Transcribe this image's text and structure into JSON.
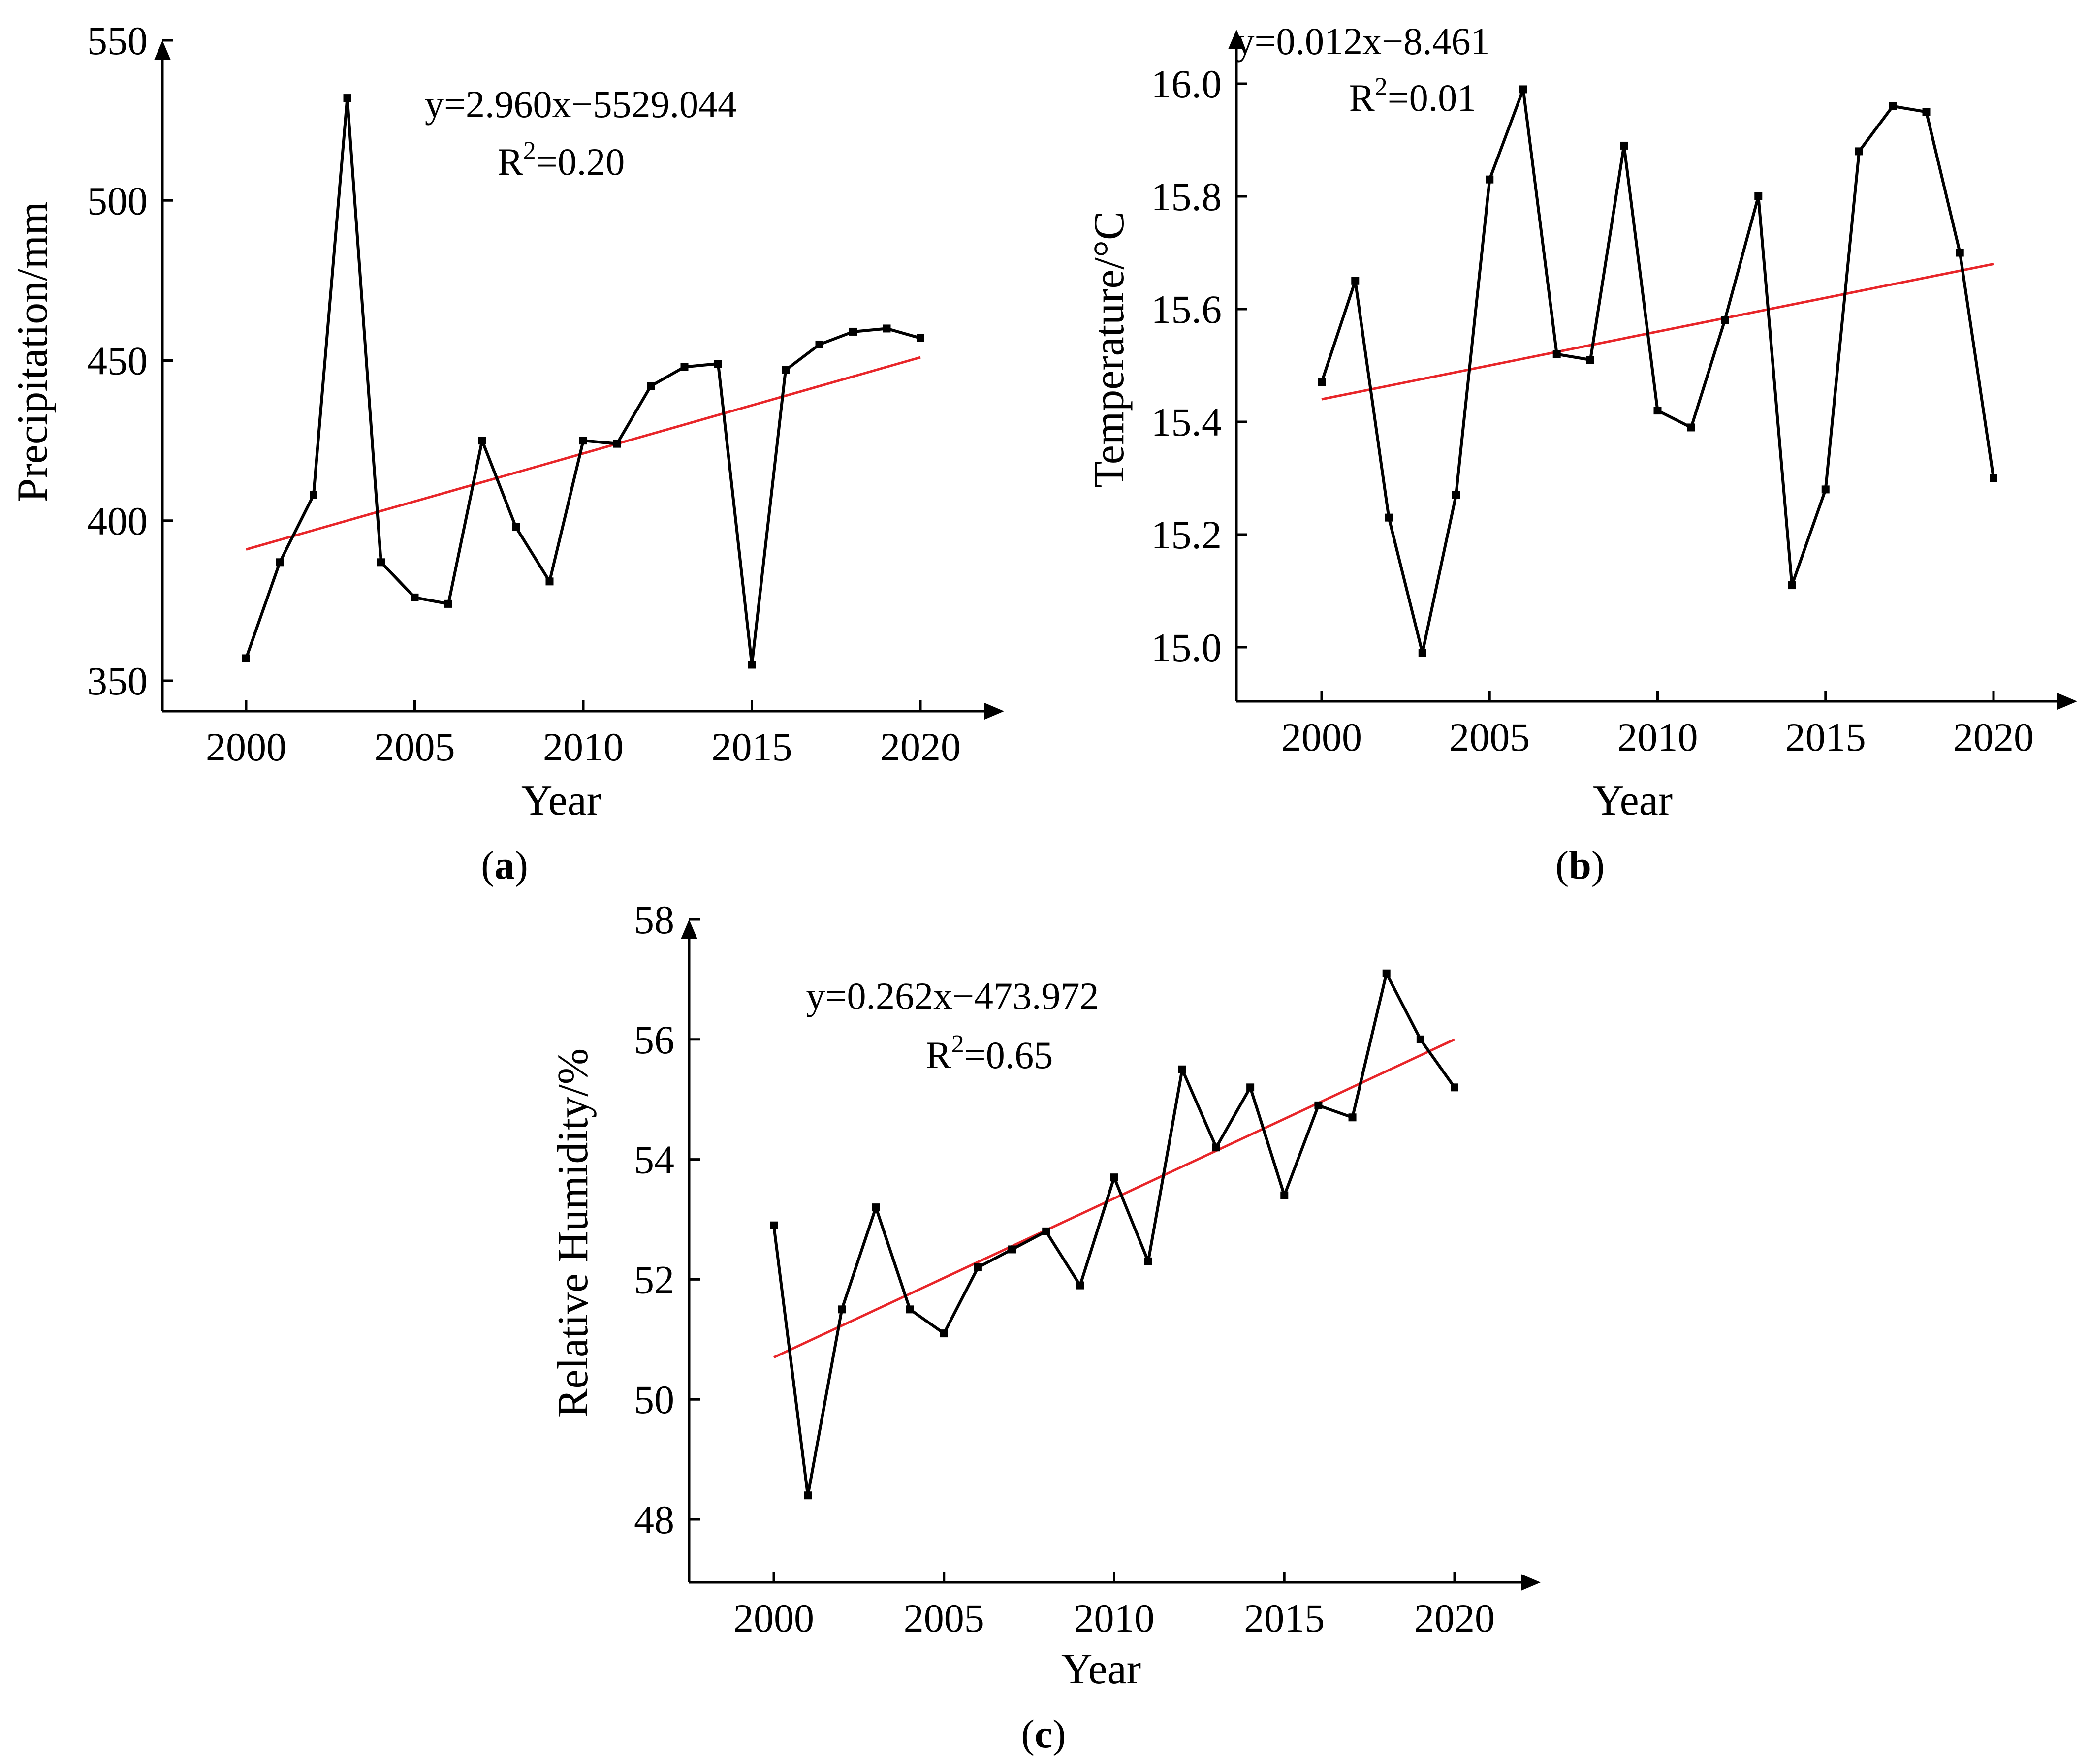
{
  "chart_data": [
    {
      "id": "a",
      "type": "line",
      "panel_label": "a",
      "xlabel": "Year",
      "ylabel": "Precipitation/mm",
      "xlim": [
        1997.5,
        2022.5
      ],
      "ylim": [
        345,
        550
      ],
      "xticks": [
        2000,
        2005,
        2010,
        2015,
        2020
      ],
      "yticks": [
        350,
        400,
        450,
        500,
        550
      ],
      "x": [
        2000,
        2001,
        2002,
        2003,
        2004,
        2005,
        2006,
        2007,
        2008,
        2009,
        2010,
        2011,
        2012,
        2013,
        2014,
        2015,
        2016,
        2017,
        2018,
        2019,
        2020
      ],
      "values": [
        357,
        387,
        408,
        532,
        387,
        376,
        374,
        425,
        398,
        381,
        425,
        424,
        442,
        448,
        449,
        355,
        447,
        455,
        459,
        460,
        457
      ],
      "trend": {
        "equation": "y=2.960x−5529.044",
        "r2_base": "R",
        "r2_sup": "2",
        "r2_rest": "=0.20",
        "x": [
          2000,
          2020
        ],
        "y": [
          391,
          451
        ]
      }
    },
    {
      "id": "b",
      "type": "line",
      "panel_label": "b",
      "xlabel": "Year",
      "ylabel": "Temperature/°C",
      "xlim": [
        1997.5,
        2022.5
      ],
      "ylim": [
        14.9,
        16.1
      ],
      "xticks": [
        2000,
        2005,
        2010,
        2015,
        2020
      ],
      "yticks": [
        15.0,
        15.2,
        15.4,
        15.6,
        15.8,
        16.0
      ],
      "ytick_labels": [
        "15.0",
        "15.2",
        "15.4",
        "15.6",
        "15.8",
        "16.0"
      ],
      "x": [
        2000,
        2001,
        2002,
        2003,
        2004,
        2005,
        2006,
        2007,
        2008,
        2009,
        2010,
        2011,
        2012,
        2013,
        2014,
        2015,
        2016,
        2017,
        2018,
        2019,
        2020
      ],
      "values": [
        15.47,
        15.65,
        15.23,
        14.99,
        15.27,
        15.83,
        15.99,
        15.52,
        15.51,
        15.89,
        15.42,
        15.39,
        15.58,
        15.8,
        15.11,
        15.28,
        15.88,
        15.96,
        15.95,
        15.7,
        15.3
      ],
      "trend": {
        "equation": "y=0.012x−8.461",
        "r2_base": "R",
        "r2_sup": "2",
        "r2_rest": "=0.01",
        "x": [
          2000,
          2020
        ],
        "y": [
          15.44,
          15.68
        ]
      }
    },
    {
      "id": "c",
      "type": "line",
      "panel_label": "c",
      "xlabel": "Year",
      "ylabel": "Relative Humidity/%",
      "xlim": [
        1997.5,
        2022.5
      ],
      "ylim": [
        47.0,
        58.0
      ],
      "xticks": [
        2000,
        2005,
        2010,
        2015,
        2020
      ],
      "yticks": [
        48,
        50,
        52,
        54,
        56,
        58
      ],
      "x": [
        2000,
        2001,
        2002,
        2003,
        2004,
        2005,
        2006,
        2007,
        2008,
        2009,
        2010,
        2011,
        2012,
        2013,
        2014,
        2015,
        2016,
        2017,
        2018,
        2019,
        2020
      ],
      "values": [
        52.9,
        48.4,
        51.5,
        53.2,
        51.5,
        51.1,
        52.2,
        52.5,
        52.8,
        51.9,
        53.7,
        52.3,
        55.5,
        54.2,
        55.2,
        53.4,
        54.9,
        54.7,
        57.1,
        56.0,
        55.2
      ],
      "trend": {
        "equation": "y=0.262x−473.972",
        "r2_base": "R",
        "r2_sup": "2",
        "r2_rest": "=0.65",
        "x": [
          2000,
          2020
        ],
        "y": [
          50.7,
          56.0
        ]
      }
    }
  ],
  "colors": {
    "series": "#000000",
    "trend": "#e8262a",
    "axis": "#000000"
  }
}
